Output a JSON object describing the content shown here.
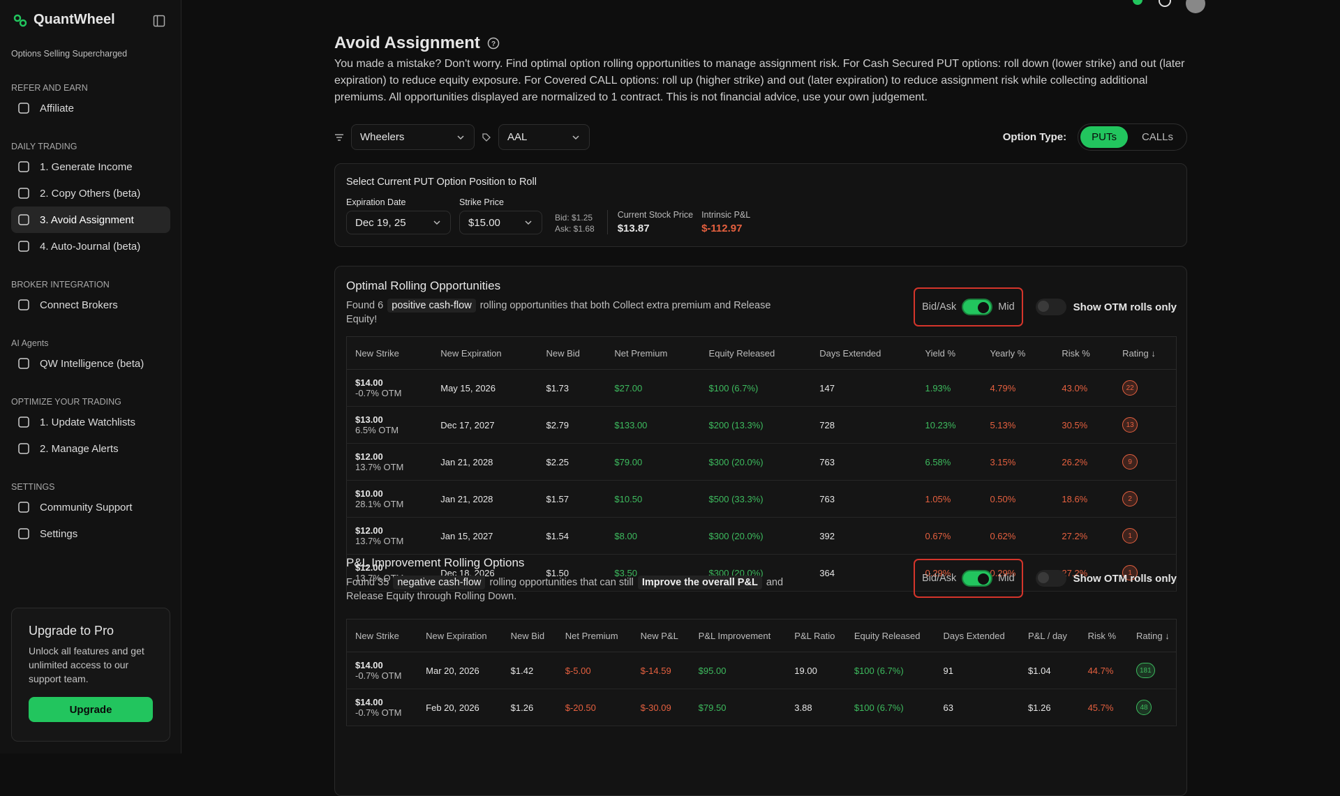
{
  "sidebar": {
    "brand": "QuantWheel",
    "tagline": "Options Selling Supercharged",
    "sections": [
      {
        "title": "REFER AND EARN",
        "items": [
          "Affiliate"
        ]
      },
      {
        "title": "DAILY TRADING",
        "items": [
          "1. Generate Income",
          "2. Copy Others (beta)",
          "3. Avoid Assignment",
          "4. Auto-Journal (beta)"
        ],
        "active": 2
      },
      {
        "title": "BROKER INTEGRATION",
        "items": [
          "Connect Brokers"
        ]
      },
      {
        "title": "AI Agents",
        "items": [
          "QW Intelligence (beta)"
        ]
      },
      {
        "title": "OPTIMIZE YOUR TRADING",
        "items": [
          "1. Update Watchlists",
          "2. Manage Alerts"
        ]
      },
      {
        "title": "SETTINGS",
        "items": [
          "Community Support",
          "Settings"
        ]
      }
    ],
    "upgrade": {
      "title": "Upgrade to Pro",
      "text": "Unlock all features and get unlimited access to our support team.",
      "button": "Upgrade"
    }
  },
  "main": {
    "title": "Avoid Assignment",
    "description": "You made a mistake? Don't worry. Find optimal option rolling opportunities to manage assignment risk. For Cash Secured PUT options: roll down (lower strike) and out (later expiration) to reduce equity exposure. For Covered CALL options: roll up (higher strike) and out (later expiration) to reduce assignment risk while collecting additional premiums. All opportunities displayed are normalized to 1 contract. This is not financial advice, use your own judgement.",
    "filters": [
      "Wheelers",
      "AAL"
    ],
    "option_type_label": "Option Type:",
    "option_types": [
      "PUTs",
      "CALLs"
    ],
    "option_type_active": 0,
    "position": {
      "title": "Select Current PUT Option Position to Roll",
      "expiration": {
        "label": "Expiration Date",
        "value": "Dec 19, 25"
      },
      "strike": {
        "label": "Strike Price",
        "value": "$15.00"
      },
      "quotes": [
        "Bid: $1.25",
        "Ask: $1.68"
      ],
      "stock": {
        "label": "Current Stock Price",
        "value": "$13.87"
      },
      "pnl": {
        "label": "Intrinsic P&L",
        "value": "$-112.97"
      }
    },
    "palette": {
      "green": "#3dbb5e",
      "red": "#e5603f",
      "white": "#e6e6e6"
    },
    "tables": [
      {
        "title": "Optimal Rolling Opportunities",
        "summary": [
          {
            "text": "Found 6"
          },
          {
            "text": "positive cash-flow",
            "highlight": true
          },
          {
            "text": "rolling opportunities that both Collect extra premium and Release Equity!"
          }
        ],
        "controls": {
          "bid_ask": "Bid/Ask",
          "mid": "Mid",
          "otm": "Show OTM rolls only"
        },
        "columns": [
          "New Strike",
          "New Expiration",
          "New Bid",
          "Net Premium",
          "Equity Released",
          "Days Extended",
          "Yield %",
          "Yearly %",
          "Risk %",
          "Rating ↓"
        ],
        "cell_colors": [
          "white",
          "white",
          "green",
          "green",
          "white",
          "green",
          "red",
          "red"
        ],
        "rating_color": "red",
        "rows": [
          {
            "strike": "$14.00",
            "otm": "-0.7% OTM",
            "cells": [
              "May 15, 2026",
              "$1.73",
              "$27.00",
              "$100 (6.7%)",
              "147",
              "1.93%",
              "4.79%",
              "43.0%"
            ],
            "rating": "22"
          },
          {
            "strike": "$13.00",
            "otm": "6.5% OTM",
            "cells": [
              "Dec 17, 2027",
              "$2.79",
              "$133.00",
              "$200 (13.3%)",
              "728",
              "10.23%",
              "5.13%",
              "30.5%"
            ],
            "rating": "13"
          },
          {
            "strike": "$12.00",
            "otm": "13.7% OTM",
            "cells": [
              "Jan 21, 2028",
              "$2.25",
              "$79.00",
              "$300 (20.0%)",
              "763",
              "6.58%",
              "3.15%",
              "26.2%"
            ],
            "rating": "9"
          },
          {
            "strike": "$10.00",
            "otm": "28.1% OTM",
            "cells": [
              "Jan 21, 2028",
              "$1.57",
              "$10.50",
              "$500 (33.3%)",
              "763",
              "1.05%",
              "0.50%",
              "18.6%"
            ],
            "rating": "2",
            "cell_colors": [
              "white",
              "white",
              "green",
              "green",
              "white",
              "red",
              "red",
              "red"
            ]
          },
          {
            "strike": "$12.00",
            "otm": "13.7% OTM",
            "cells": [
              "Jan 15, 2027",
              "$1.54",
              "$8.00",
              "$300 (20.0%)",
              "392",
              "0.67%",
              "0.62%",
              "27.2%"
            ],
            "rating": "1",
            "cell_colors": [
              "white",
              "white",
              "green",
              "green",
              "white",
              "red",
              "red",
              "red"
            ]
          },
          {
            "strike": "$12.00",
            "otm": "13.7% OTM",
            "cells": [
              "Dec 18, 2026",
              "$1.50",
              "$3.50",
              "$300 (20.0%)",
              "364",
              "0.29%",
              "0.29%",
              "27.2%"
            ],
            "rating": "1",
            "cell_colors": [
              "white",
              "white",
              "green",
              "green",
              "white",
              "red",
              "red",
              "red"
            ]
          }
        ]
      },
      {
        "title": "P&L Improvement Rolling Options",
        "summary": [
          {
            "text": "Found 35"
          },
          {
            "text": "negative cash-flow",
            "highlight": true
          },
          {
            "text": "rolling opportunities that can still"
          },
          {
            "text": "Improve the overall P&L",
            "highlight": true
          },
          {
            "text": "and Release Equity through Rolling Down."
          }
        ],
        "controls": {
          "bid_ask": "Bid/Ask",
          "mid": "Mid",
          "otm": "Show OTM rolls only"
        },
        "columns": [
          "New Strike",
          "New Expiration",
          "New Bid",
          "Net Premium",
          "New P&L",
          "P&L Improvement",
          "P&L Ratio",
          "Equity Released",
          "Days Extended",
          "P&L / day",
          "Risk %",
          "Rating ↓"
        ],
        "cell_colors": [
          "white",
          "white",
          "red",
          "red",
          "green",
          "white",
          "green",
          "white",
          "white",
          "red"
        ],
        "rating_color": "green",
        "rows": [
          {
            "strike": "$14.00",
            "otm": "-0.7% OTM",
            "cells": [
              "Mar 20, 2026",
              "$1.42",
              "$-5.00",
              "$-14.59",
              "$95.00",
              "19.00",
              "$100 (6.7%)",
              "91",
              "$1.04",
              "44.7%"
            ],
            "rating": "181"
          },
          {
            "strike": "$14.00",
            "otm": "-0.7% OTM",
            "cells": [
              "Feb 20, 2026",
              "$1.26",
              "$-20.50",
              "$-30.09",
              "$79.50",
              "3.88",
              "$100 (6.7%)",
              "63",
              "$1.26",
              "45.7%"
            ],
            "rating": "48"
          }
        ]
      }
    ]
  }
}
